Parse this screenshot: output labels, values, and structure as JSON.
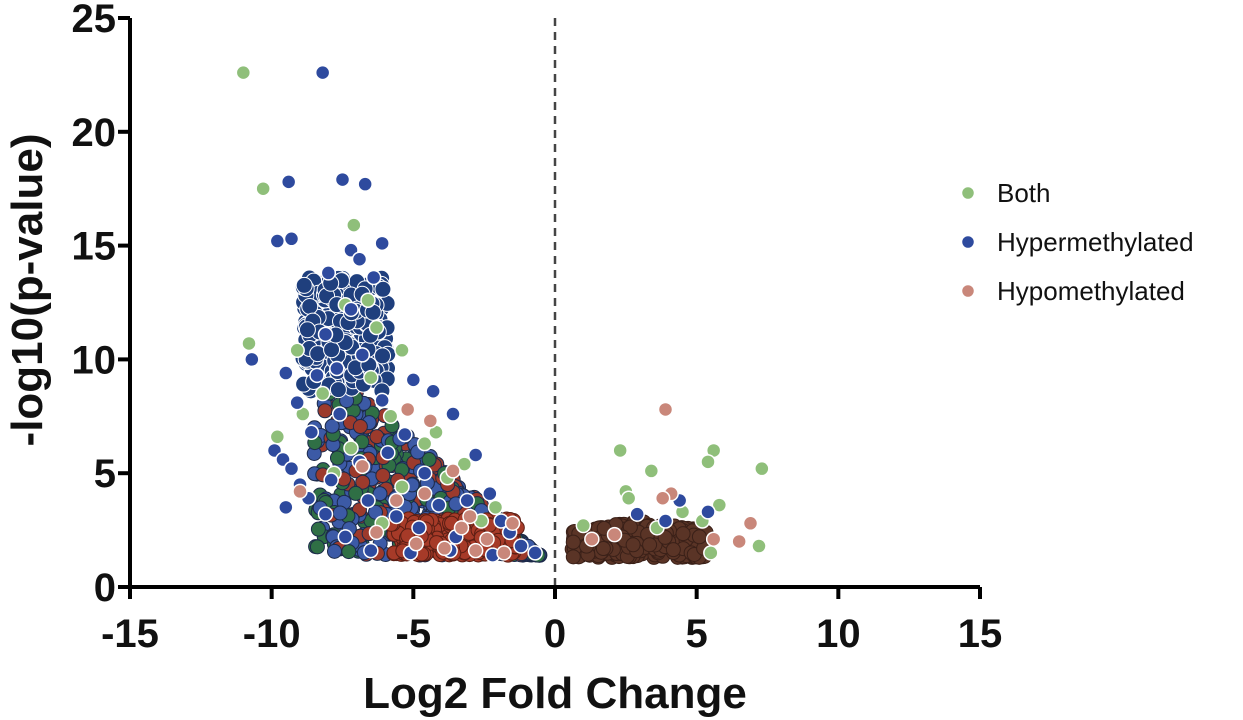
{
  "chart_data": {
    "type": "scatter",
    "title": "",
    "xlabel": "Log2 Fold Change",
    "ylabel": "-log10(p-value)",
    "xlim": [
      -15,
      15
    ],
    "ylim": [
      0,
      25
    ],
    "x_ticks": [
      -15,
      -10,
      -5,
      0,
      5,
      10,
      15
    ],
    "y_ticks": [
      0,
      5,
      10,
      15,
      20,
      25
    ],
    "x_tick_labels": [
      "-15",
      "-10",
      "-5",
      "0",
      "5",
      "10",
      "15"
    ],
    "y_tick_labels": [
      "0",
      "5",
      "10",
      "15",
      "20",
      "25"
    ],
    "grid": false,
    "reference_line": {
      "x": 0,
      "style": "dashed"
    },
    "legend": {
      "position": "right"
    },
    "series": [
      {
        "name": "Both",
        "color": "#8fbf7a",
        "points": [
          [
            -11,
            22.6
          ],
          [
            -10.3,
            17.5
          ],
          [
            -7.1,
            15.9
          ],
          [
            -6.6,
            12.6
          ],
          [
            -10.8,
            10.7
          ],
          [
            -9.1,
            10.4
          ],
          [
            -9.8,
            6.6
          ],
          [
            -8.9,
            7.6
          ],
          [
            -5.4,
            10.4
          ],
          [
            -7.4,
            12.4
          ],
          [
            -6.3,
            11.4
          ],
          [
            -7.8,
            5
          ],
          [
            -4.6,
            6.3
          ],
          [
            -5.4,
            4.4
          ],
          [
            -3.2,
            5.4
          ],
          [
            -2.1,
            3.5
          ],
          [
            -6.1,
            2.8
          ],
          [
            -4.2,
            6.8
          ],
          [
            -8.2,
            8.5
          ],
          [
            -6.5,
            9.2
          ],
          [
            -5.8,
            7.5
          ],
          [
            -3.8,
            4.8
          ],
          [
            -2.6,
            2.9
          ],
          [
            -7.2,
            6.1
          ],
          [
            2.3,
            6
          ],
          [
            3.4,
            5.1
          ],
          [
            5.6,
            6
          ],
          [
            5.4,
            5.5
          ],
          [
            7.3,
            5.2
          ],
          [
            5.8,
            3.6
          ],
          [
            2.5,
            4.2
          ],
          [
            7.2,
            1.8
          ],
          [
            5.5,
            1.5
          ],
          [
            1,
            2.7
          ],
          [
            2.6,
            3.9
          ],
          [
            4.5,
            3.3
          ],
          [
            5.2,
            2.9
          ],
          [
            3.6,
            2.6
          ]
        ]
      },
      {
        "name": "Hypermethylated",
        "color": "#2e4a9e",
        "points": [
          [
            -8.2,
            22.6
          ],
          [
            -7.5,
            17.9
          ],
          [
            -6.7,
            17.7
          ],
          [
            -9.4,
            17.8
          ],
          [
            -9.3,
            15.3
          ],
          [
            -9.8,
            15.2
          ],
          [
            -7.2,
            14.8
          ],
          [
            -6.9,
            14.4
          ],
          [
            -6.1,
            15.1
          ],
          [
            -10.7,
            10
          ],
          [
            -8,
            13.8
          ],
          [
            -6.4,
            13.6
          ],
          [
            -9.5,
            9.4
          ],
          [
            -9.9,
            6
          ],
          [
            -9.6,
            5.6
          ],
          [
            -9.3,
            5.2
          ],
          [
            -9,
            4.5
          ],
          [
            -8.7,
            3.9
          ],
          [
            -9.5,
            3.5
          ],
          [
            -8.1,
            3.2
          ],
          [
            -7.4,
            2.2
          ],
          [
            -6.5,
            1.6
          ],
          [
            -5.1,
            1.5
          ],
          [
            -3.7,
            1.6
          ],
          [
            -2.2,
            1.4
          ],
          [
            -0.7,
            1.5
          ],
          [
            -1.2,
            1.8
          ],
          [
            -5,
            9.1
          ],
          [
            -4.3,
            8.6
          ],
          [
            -3.6,
            7.6
          ],
          [
            -2.8,
            5.8
          ],
          [
            -2.3,
            4.1
          ],
          [
            -1.9,
            2.9
          ],
          [
            -7.2,
            12.2
          ],
          [
            -8.1,
            11.1
          ],
          [
            -6.8,
            10.2
          ],
          [
            -7.7,
            9.6
          ],
          [
            -6.1,
            8.2
          ],
          [
            -5.3,
            6.7
          ],
          [
            -8.6,
            6.8
          ],
          [
            -7.9,
            4.7
          ],
          [
            -6.6,
            3.8
          ],
          [
            -5.6,
            3.1
          ],
          [
            -4.8,
            2.6
          ],
          [
            -3.5,
            2.2
          ],
          [
            -4.1,
            3.6
          ],
          [
            -6.9,
            5.5
          ],
          [
            -5.9,
            5.9
          ],
          [
            -4.6,
            5
          ],
          [
            -3.1,
            3.8
          ],
          [
            -1.6,
            2.4
          ],
          [
            -8.4,
            9.3
          ],
          [
            -9.1,
            8.1
          ],
          [
            -7.6,
            7.6
          ],
          [
            5.4,
            3.3
          ],
          [
            4.4,
            3.8
          ],
          [
            2.9,
            3.2
          ],
          [
            3.9,
            2.9
          ]
        ]
      },
      {
        "name": "Hypomethylated",
        "color": "#c9877a",
        "points": [
          [
            3.9,
            7.8
          ],
          [
            -9,
            4.2
          ],
          [
            -6.8,
            5.3
          ],
          [
            -3.6,
            5.1
          ],
          [
            -1.5,
            2.8
          ],
          [
            -5.2,
            7.8
          ],
          [
            -4.4,
            7.3
          ],
          [
            -3,
            3.1
          ],
          [
            -2.4,
            2.1
          ],
          [
            -6.3,
            2.4
          ],
          [
            -4.9,
            1.9
          ],
          [
            -3.9,
            1.7
          ],
          [
            -2.8,
            1.6
          ],
          [
            -1.8,
            1.5
          ],
          [
            -5.6,
            3.8
          ],
          [
            -4.6,
            4.1
          ],
          [
            -3.3,
            2.6
          ],
          [
            6.5,
            2
          ],
          [
            6.9,
            2.8
          ],
          [
            5.6,
            2.1
          ],
          [
            4.1,
            4.1
          ],
          [
            3.8,
            3.9
          ],
          [
            1.3,
            2.1
          ],
          [
            2.1,
            2.3
          ]
        ]
      }
    ]
  }
}
